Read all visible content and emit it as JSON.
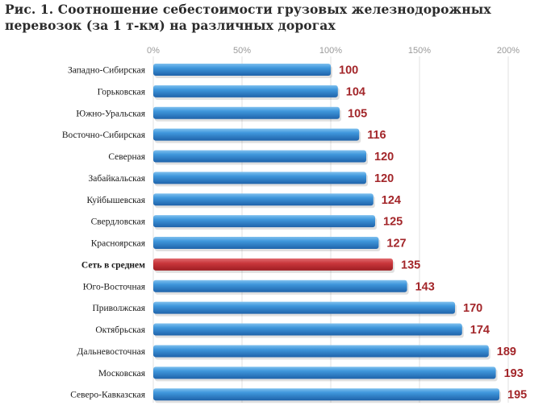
{
  "title_line1": "Рис. 1. Соотношение себестоимости грузовых железнодорожных",
  "title_line2": "перевозок (за 1 т-км) на различных дорогах",
  "chart_data": {
    "type": "bar",
    "orientation": "horizontal",
    "title": "Рис. 1. Соотношение себестоимости грузовых железнодорожных перевозок (за 1 т-км) на различных дорогах",
    "x_ticks": [
      "0%",
      "50%",
      "100%",
      "150%",
      "200%"
    ],
    "xlim": [
      0,
      200
    ],
    "grid": true,
    "categories": [
      "Западно-Сибирская",
      "Горьковская",
      "Южно-Уральская",
      "Восточно-Сибирская",
      "Северная",
      "Забайкальская",
      "Куйбышевская",
      "Свердловская",
      "Красноярская",
      "Сеть в среднем",
      "Юго-Восточная",
      "Приволжская",
      "Октябрьская",
      "Дальневосточная",
      "Московская",
      "Северо-Кавказская"
    ],
    "values": [
      100,
      104,
      105,
      116,
      120,
      120,
      124,
      125,
      127,
      135,
      143,
      170,
      174,
      189,
      193,
      195
    ],
    "highlight": "Сеть в среднем",
    "colors": {
      "bar": "#2f7fc9",
      "highlight": "#c0272d",
      "label": "#a3262a"
    }
  }
}
